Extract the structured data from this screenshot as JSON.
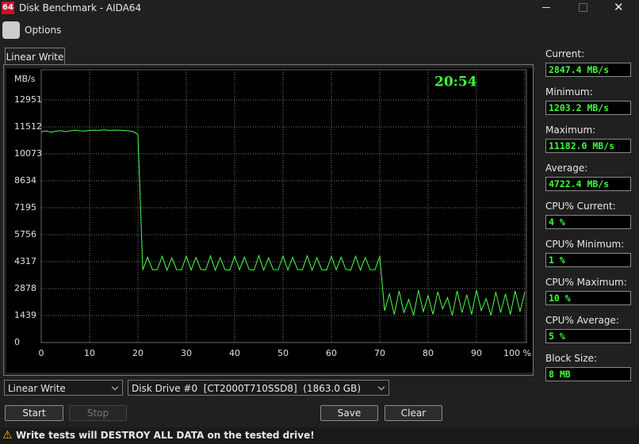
{
  "window": {
    "app_icon": "64",
    "title": "Disk Benchmark - AIDA64"
  },
  "menu": {
    "options": "Options"
  },
  "tab": "Linear Write",
  "chart_data": {
    "type": "line",
    "y_label": "MB/s",
    "annotation": "20:54",
    "color": "#4cff4c",
    "grid": true,
    "xlim": [
      0,
      100
    ],
    "xticks": [
      0,
      10,
      20,
      30,
      40,
      50,
      60,
      70,
      80,
      90,
      {
        "value": 100,
        "label": "100 %"
      }
    ],
    "ylim": [
      0,
      14390
    ],
    "yticks": [
      0,
      1439,
      2878,
      4317,
      5756,
      7195,
      8634,
      10073,
      11512,
      12951
    ],
    "x": [
      0,
      1,
      2,
      3,
      4,
      5,
      6,
      7,
      8,
      9,
      10,
      11,
      12,
      13,
      14,
      15,
      16,
      17,
      18,
      19,
      20,
      21,
      22,
      23,
      24,
      25,
      26,
      27,
      28,
      29,
      30,
      31,
      32,
      33,
      34,
      35,
      36,
      37,
      38,
      39,
      40,
      41,
      42,
      43,
      44,
      45,
      46,
      47,
      48,
      49,
      50,
      51,
      52,
      53,
      54,
      55,
      56,
      57,
      58,
      59,
      60,
      61,
      62,
      63,
      64,
      65,
      66,
      67,
      68,
      69,
      70,
      71,
      72,
      73,
      74,
      75,
      76,
      77,
      78,
      79,
      80,
      81,
      82,
      83,
      84,
      85,
      86,
      87,
      88,
      89,
      90,
      91,
      92,
      93,
      94,
      95,
      96,
      97,
      98,
      99,
      100
    ],
    "values": [
      11250,
      11300,
      11220,
      11280,
      11310,
      11260,
      11300,
      11330,
      11300,
      11290,
      11320,
      11340,
      11320,
      11350,
      11320,
      11340,
      11330,
      11320,
      11300,
      11260,
      11120,
      3870,
      4560,
      3880,
      3900,
      4600,
      3860,
      4520,
      3890,
      3880,
      4610,
      3870,
      4540,
      3900,
      3880,
      4620,
      3860,
      4530,
      3890,
      3870,
      4600,
      3880,
      4560,
      3900,
      3870,
      4630,
      3860,
      4520,
      3890,
      3880,
      4610,
      3870,
      4550,
      3900,
      3880,
      4620,
      3860,
      4530,
      3890,
      3870,
      4600,
      3880,
      4560,
      3900,
      3870,
      4610,
      3860,
      4540,
      3890,
      3880,
      4600,
      1700,
      2600,
      1500,
      2750,
      1600,
      2300,
      1450,
      2800,
      1650,
      2500,
      1500,
      2700,
      1800,
      2400,
      1450,
      2750,
      1600,
      2550,
      1500,
      2800,
      1700,
      2350,
      1450,
      2700,
      1600,
      2600,
      1500,
      2750,
      1650,
      2700
    ]
  },
  "side": [
    {
      "label": "Current:",
      "value": "2847.4 MB/s"
    },
    {
      "label": "Minimum:",
      "value": "1203.2 MB/s"
    },
    {
      "label": "Maximum:",
      "value": "11182.0 MB/s"
    },
    {
      "label": "Average:",
      "value": "4722.4 MB/s"
    },
    {
      "label": "CPU% Current:",
      "value": "4 %"
    },
    {
      "label": "CPU% Minimum:",
      "value": "1 %"
    },
    {
      "label": "CPU% Maximum:",
      "value": "10 %"
    },
    {
      "label": "CPU% Average:",
      "value": "5 %"
    },
    {
      "label": "Block Size:",
      "value": "8 MB"
    }
  ],
  "controls": {
    "test_select": "Linear Write",
    "drive_select": "Disk Drive #0  [CT2000T710SSD8]  (1863.0 GB)",
    "start": "Start",
    "stop": "Stop",
    "save": "Save",
    "clear": "Clear"
  },
  "warning": "Write tests will DESTROY ALL DATA on the tested drive!"
}
